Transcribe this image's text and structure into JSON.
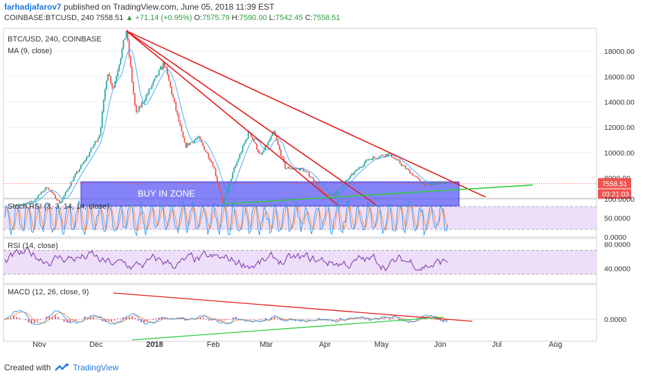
{
  "header": {
    "author": "farhadjafarov7",
    "published_text": "published on TradingView.com, June 05, 2018 11:39 EST",
    "symbol": "COINBASE:BTCUSD, 240",
    "last": "7558.51",
    "change_arrow": "▲",
    "change": "+71.14 (+0.95%)",
    "o_label": "O:",
    "o": "7575.79",
    "h_label": "H:",
    "h": "7590.00",
    "l_label": "L:",
    "l": "7542.45",
    "c_label": "C:",
    "c": "7558.51"
  },
  "footer": {
    "created_with": "Created with",
    "brand": "TradingView"
  },
  "colors": {
    "up": "#26a69a",
    "down": "#ef5350",
    "trend_red": "#e31b1b",
    "trend_green": "#2ecc40",
    "zone_fill": "#5b5bf5",
    "stoch_k": "#2196f3",
    "stoch_d": "#ff8a30",
    "rsi": "#7b2fa6",
    "macd_line": "#2196f3",
    "signal_line": "#ff8a30",
    "hist": "#e0245e",
    "band_fill": "#e8d6f7"
  },
  "chart_data": [
    {
      "type": "line",
      "title": "BTC/USD, 240, COINBASE",
      "indicator": "MA (9, close)",
      "ylim": [
        6400,
        19800
      ],
      "y_ticks": [
        "18000.00",
        "16000.00",
        "14000.00",
        "12000.00",
        "10000.00",
        "8000.00"
      ],
      "y_tick_values": [
        18000,
        16000,
        14000,
        12000,
        10000,
        8000
      ],
      "x_ticks": [
        "Nov",
        "Dec",
        "2018",
        "Feb",
        "Mar",
        "Apr",
        "May",
        "Jun",
        "Jul",
        "Aug"
      ],
      "price_label": "7558.51",
      "countdown_label": "03:21:03",
      "annotation": "BUY IN ZONE",
      "zone": [
        5800,
        7700
      ],
      "price_path": [
        [
          "2017-10-15",
          5600
        ],
        [
          "2017-10-22",
          5900
        ],
        [
          "2017-10-29",
          6200
        ],
        [
          "2017-11-05",
          7300
        ],
        [
          "2017-11-12",
          6000
        ],
        [
          "2017-11-19",
          8000
        ],
        [
          "2017-11-26",
          9600
        ],
        [
          "2017-12-03",
          11500
        ],
        [
          "2017-12-07",
          16500
        ],
        [
          "2017-12-10",
          15000
        ],
        [
          "2017-12-17",
          19600
        ],
        [
          "2017-12-22",
          13000
        ],
        [
          "2017-12-28",
          14600
        ],
        [
          "2018-01-06",
          17100
        ],
        [
          "2018-01-12",
          13500
        ],
        [
          "2018-01-17",
          10500
        ],
        [
          "2018-01-24",
          11200
        ],
        [
          "2018-02-01",
          9000
        ],
        [
          "2018-02-06",
          6000
        ],
        [
          "2018-02-12",
          8700
        ],
        [
          "2018-02-20",
          11700
        ],
        [
          "2018-02-26",
          9700
        ],
        [
          "2018-03-05",
          11600
        ],
        [
          "2018-03-11",
          8800
        ],
        [
          "2018-03-20",
          8700
        ],
        [
          "2018-03-26",
          7900
        ],
        [
          "2018-04-01",
          6600
        ],
        [
          "2018-04-06",
          6700
        ],
        [
          "2018-04-15",
          8200
        ],
        [
          "2018-04-24",
          9500
        ],
        [
          "2018-05-05",
          9900
        ],
        [
          "2018-05-15",
          8600
        ],
        [
          "2018-05-24",
          7400
        ],
        [
          "2018-06-01",
          7600
        ],
        [
          "2018-06-05",
          7558
        ]
      ],
      "trendlines": [
        {
          "color": "red",
          "from": [
            "2017-12-17",
            19600
          ],
          "to": [
            "2018-06-25",
            6500
          ]
        },
        {
          "color": "red",
          "from": [
            "2017-12-17",
            19600
          ],
          "to": [
            "2018-04-28",
            5900
          ]
        },
        {
          "color": "red",
          "from": [
            "2017-12-17",
            19600
          ],
          "to": [
            "2018-04-10",
            5600
          ]
        },
        {
          "color": "green",
          "from": [
            "2018-02-06",
            5950
          ],
          "to": [
            "2018-07-20",
            7450
          ]
        }
      ]
    },
    {
      "type": "line",
      "title": "Stoch RSI (3, 3, 14, 14, close)",
      "ylim": [
        0,
        100
      ],
      "y_ticks": [
        "100.0000",
        "50.0000",
        "0.0000"
      ],
      "band": [
        20,
        80
      ]
    },
    {
      "type": "line",
      "title": "RSI (14, close)",
      "ylim": [
        15,
        90
      ],
      "y_ticks": [
        "80.0000",
        "40.0000"
      ],
      "band": [
        30,
        70
      ]
    },
    {
      "type": "line",
      "title": "MACD (12, 26, close, 9)",
      "y_ticks": [
        "0.0000"
      ],
      "trendlines": [
        {
          "color": "red",
          "from": [
            "2017-12-10",
            "top"
          ],
          "to": [
            "2018-06-08",
            "near zero"
          ]
        },
        {
          "color": "green",
          "from": [
            "2017-12-20",
            "bottom"
          ],
          "to": [
            "2018-06-03",
            "near zero"
          ]
        }
      ]
    }
  ]
}
